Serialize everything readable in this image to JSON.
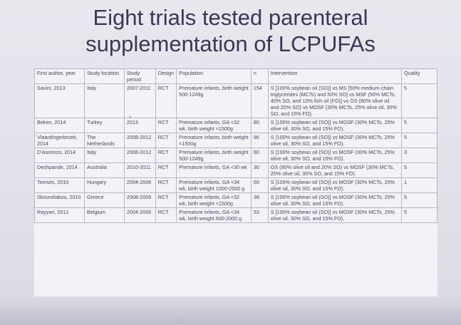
{
  "slide": {
    "title_line1": "Eight trials tested parenteral",
    "title_line2": "supplementation of LCPUFAs"
  },
  "table": {
    "headers": [
      "First author, year",
      "Study location",
      "Study period",
      "Design",
      "Population",
      "n",
      "Intervention",
      "Quality"
    ],
    "rows": [
      {
        "author": "Savini, 2013",
        "location": "Italy",
        "period": "2007-2011",
        "design": "RCT",
        "population": "Premature infants, birth weight 500-1249g",
        "n": "154",
        "intervention": "S [100% soybean oil (SO)] vs MS [50% medium-chain triglycerides (MCTs) and 50% SO] vs MSF (50% MCTs, 40% SO, and 10% fish oil (FO)] vs OS (80% olive oil and 20% SO) vs MOSF (30% MCTs, 25% olive oil, 30% SO, and 15% FO).",
        "quality": "5"
      },
      {
        "author": "Beken, 2014",
        "location": "Turkey",
        "period": "2013",
        "design": "RCT",
        "population": "Premature infants, GA <32 wk, birth weight <1500g",
        "n": "80",
        "intervention": "S [100% soybean oil (SO)] vs MOSF (30% MCTs, 25% olive oil, 30% SO, and 15% FO).",
        "quality": "5"
      },
      {
        "author": "Vlaardingerbroek, 2014",
        "location": "The Netherlands",
        "period": "2008-2012",
        "design": "RCT",
        "population": "Premature infants, birth weight <1500g",
        "n": "96",
        "intervention": "S [100% soybean oil (SO)] vs MOSF (30% MCTs, 25% olive oil, 30% SO, and 15% FO).",
        "quality": "5"
      },
      {
        "author": "D'Ascenzo, 2014",
        "location": "Italy",
        "period": "2008-2012",
        "design": "RCT",
        "population": "Premature infants, birth weight 500-1249g",
        "n": "80",
        "intervention": "S [100% soybean oil (SO)] vs MOSF (30% MCTs, 25% olive oil, 30% SO, and 15% FO).",
        "quality": "3"
      },
      {
        "author": "Deshpande, 2014",
        "location": "Australia",
        "period": "2010-2011",
        "design": "RCT",
        "population": "Premature infants, GA <30 wk",
        "n": "30",
        "intervention": "OS (80% olive oil and 20% SO) vs MOSF (30% MCTs, 25% olive oil, 30% SO, and 15% FO).",
        "quality": "5"
      },
      {
        "author": "Tomsits, 2010",
        "location": "Hungary",
        "period": "2004-2006",
        "design": "RCT",
        "population": "Premature infants, GA <34 wk, birth weight 1000-2500 g",
        "n": "60",
        "intervention": "S [100% soybean oil (SO)] vs MOSF (30% MCTs, 25% olive oil, 30% SO, and 15% FO).",
        "quality": "1"
      },
      {
        "author": "Skouroliakou, 2010",
        "location": "Greece",
        "period": "2008-2009",
        "design": "RCT",
        "population": "Premature infants, GA <32 wk, birth weight <1500g",
        "n": "38",
        "intervention": "S [100% soybean oil (SO)] vs MOSF (30% MCTs, 25% olive oil, 30% SO, and 15% FO).",
        "quality": "5"
      },
      {
        "author": "Rayyan, 2012",
        "location": "Belgium",
        "period": "2004-2006",
        "design": "RCT",
        "population": "Premature infants, GA <34 wk, birth weight 500-2000 g",
        "n": "53",
        "intervention": "S [100% soybean oil (SO)] vs MOSF (30% MCTs, 25% olive oil, 30% SO, and 15% FO).",
        "quality": "5"
      }
    ]
  }
}
